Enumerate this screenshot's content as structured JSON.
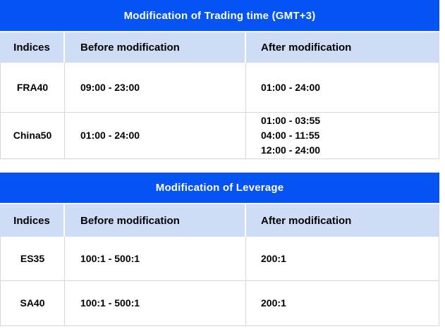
{
  "colors": {
    "title_bar_bg": "#0553F2",
    "title_text": "#FFFFFF",
    "header_bg": "#CEDCF6",
    "body_text": "#000000",
    "border": "#D8D8D8"
  },
  "tables": [
    {
      "title": "Modification of Trading time (GMT+3)",
      "headers": [
        "Indices",
        "Before modification",
        "After modification"
      ],
      "rows": [
        {
          "index": "FRA40",
          "before": "09:00 - 23:00",
          "after": [
            "01:00 - 24:00"
          ]
        },
        {
          "index": "China50",
          "before": "01:00 - 24:00",
          "after": [
            "01:00 - 03:55",
            "04:00 - 11:55",
            "12:00 - 24:00"
          ]
        }
      ]
    },
    {
      "title": "Modification of Leverage",
      "headers": [
        "Indices",
        "Before modification",
        "After modification"
      ],
      "rows": [
        {
          "index": "ES35",
          "before": "100:1 - 500:1",
          "after": [
            "200:1"
          ]
        },
        {
          "index": "SA40",
          "before": "100:1 - 500:1",
          "after": [
            "200:1"
          ]
        }
      ]
    }
  ]
}
